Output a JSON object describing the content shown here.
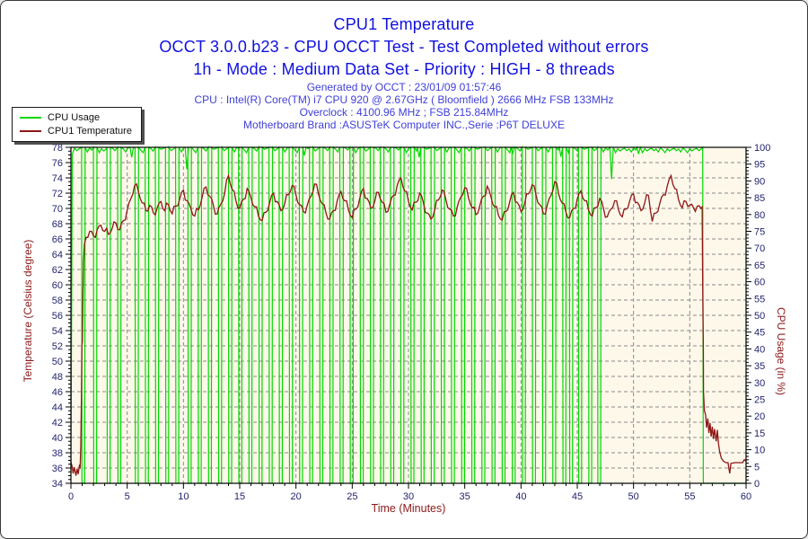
{
  "header": {
    "title": "CPU1 Temperature",
    "subtitle1": "OCCT 3.0.0.b23 - CPU OCCT Test - Test Completed without errors",
    "subtitle2": "1h - Mode : Medium Data Set - Priority : HIGH - 8 threads",
    "info_lines": [
      "Generated by OCCT : 23/01/09 01:57:46",
      "CPU : Intel(R) Core(TM) i7 CPU 920 @ 2.67GHz ( Bloomfield ) 2666 MHz FSB 133MHz",
      "Overclock : 4100.96 MHz ; FSB 215.84MHz",
      "Motherboard Brand :ASUSTeK Computer INC.,Serie :P6T DELUXE"
    ]
  },
  "legend": {
    "items": [
      {
        "label": "CPU Usage",
        "color": "#00d800"
      },
      {
        "label": "CPU1 Temperature",
        "color": "#8f1616"
      }
    ]
  },
  "colors": {
    "plot_background": "#fdf8ea",
    "grid": "#8a8a8a",
    "axis": "#000000",
    "tick_label": "#232370",
    "usage_green": "#00d800",
    "temperature_red": "#8f1616",
    "axis_title_maroon": "#8b1a1a"
  },
  "chart_data": {
    "type": "line",
    "title": "CPU1 Temperature",
    "x_axis": {
      "label": "Time (Minutes)",
      "min": 0,
      "max": 60,
      "major_step": 5,
      "minor_step": 1
    },
    "y_left": {
      "label": "Temperature (Celsius degree)",
      "min": 34,
      "max": 78,
      "major_step": 2,
      "minor_step": 0.5
    },
    "y_right": {
      "label": "CPU Usage (in %)",
      "min": 0,
      "max": 100,
      "major_step": 5,
      "minor_step": 1
    },
    "grid": {
      "horizontal_step_left_units": 2,
      "vertical_step_minutes": 5,
      "style": "dashed"
    },
    "series": [
      {
        "name": "CPU Usage",
        "axis": "right",
        "color": "#00d800",
        "start": [
          [
            0,
            3
          ],
          [
            0.12,
            98
          ]
        ],
        "dips_to_zero": {
          "duration": 0.28,
          "times": [
            0.95,
            2.0,
            3.2,
            4.15,
            5.7,
            6.6,
            7.5,
            8.4,
            9.3,
            10.4,
            11.3,
            12.2,
            13.1,
            14.0,
            14.9,
            15.8,
            16.7,
            17.6,
            18.5,
            19.4,
            20.3,
            21.2,
            22.1,
            23.0,
            23.9,
            24.8,
            25.7,
            26.6,
            27.5,
            28.4,
            29.3,
            30.2,
            31.1,
            32.0,
            32.9,
            33.8,
            34.7,
            35.6,
            36.5,
            37.4,
            38.3,
            39.2,
            40.1,
            41.0,
            41.9,
            42.8,
            43.7,
            44.3,
            45.1,
            46.0,
            46.8
          ]
        },
        "shallow_dips": [
          [
            5.25,
            97
          ],
          [
            10.15,
            93.5
          ],
          [
            20.6,
            97.5
          ],
          [
            30.8,
            97
          ],
          [
            39.1,
            98
          ],
          [
            43.4,
            97.2
          ],
          [
            47.9,
            90.5
          ],
          [
            50.3,
            98
          ]
        ],
        "drop_at": 56.15,
        "end_level": 0,
        "top_jitter": [
          0.3,
          1.0,
          0.5,
          1.4,
          0.2,
          0.8,
          1.6,
          0.4,
          1.1,
          0.6
        ]
      },
      {
        "name": "CPU1 Temperature",
        "axis": "left",
        "color": "#8f1616",
        "head": [
          [
            0,
            36.8
          ],
          [
            0.1,
            36.2
          ],
          [
            0.2,
            35.3
          ],
          [
            0.3,
            36.1
          ],
          [
            0.45,
            35.0
          ],
          [
            0.55,
            35.9
          ],
          [
            0.65,
            35.2
          ],
          [
            0.75,
            36.3
          ],
          [
            0.82,
            36.1
          ],
          [
            0.88,
            39.0
          ],
          [
            0.93,
            45.0
          ],
          [
            0.97,
            52.0
          ],
          [
            1.02,
            52.6
          ],
          [
            1.07,
            58.5
          ],
          [
            1.12,
            63.0
          ],
          [
            1.2,
            65.3
          ],
          [
            1.28,
            65.8
          ]
        ],
        "steady": {
          "t0": 1.3333,
          "dt": 0.3333,
          "values": [
            66.2,
            67.0,
            66.4,
            67.2,
            67.8,
            67.0,
            66.6,
            67.4,
            68.1,
            67.2,
            68.4,
            69.8,
            71.3,
            73.0,
            72.2,
            70.7,
            69.7,
            70.4,
            69.4,
            70.1,
            70.9,
            69.7,
            70.5,
            69.3,
            70.3,
            71.2,
            72.4,
            71.0,
            69.9,
            69.0,
            69.8,
            71.5,
            72.8,
            71.6,
            70.4,
            69.3,
            70.6,
            72.0,
            74.3,
            72.5,
            71.0,
            70.0,
            71.2,
            72.6,
            71.4,
            70.2,
            69.0,
            68.4,
            69.5,
            70.8,
            72.0,
            70.9,
            69.7,
            70.6,
            71.8,
            73.0,
            71.8,
            70.5,
            69.6,
            70.4,
            71.6,
            73.2,
            71.9,
            70.6,
            69.4,
            68.6,
            69.7,
            71.0,
            72.2,
            71.0,
            69.8,
            68.8,
            69.9,
            71.3,
            72.6,
            71.3,
            70.0,
            70.9,
            72.1,
            70.8,
            69.5,
            70.5,
            71.7,
            73.0,
            74.0,
            72.3,
            70.9,
            69.8,
            70.8,
            72.0,
            70.7,
            69.4,
            68.6,
            69.8,
            71.1,
            72.4,
            71.1,
            69.9,
            69.0,
            70.2,
            71.5,
            72.7,
            71.4,
            70.1,
            69.2,
            70.3,
            71.6,
            72.9,
            71.5,
            70.2,
            69.1,
            68.5,
            69.6,
            70.9,
            72.1,
            70.8,
            69.6,
            70.7,
            71.9,
            73.1,
            71.8,
            70.5,
            69.3,
            70.4,
            71.7,
            73.5,
            72.0,
            70.7,
            69.5,
            68.8,
            70.0,
            71.2,
            72.3,
            71.0,
            69.8,
            69.0,
            70.1,
            71.3,
            70.0,
            68.9,
            69.9,
            71.0,
            69.8,
            68.9,
            69.9,
            71.0,
            71.9,
            70.8,
            69.7,
            70.7,
            71.7,
            68.3,
            69.4,
            70.6,
            71.8,
            72.9,
            74.3,
            72.6,
            71.2,
            70.1,
            70.9,
            70.4,
            70.1,
            70.3,
            70.0
          ]
        },
        "tail": [
          [
            56.1,
            70.2
          ],
          [
            56.15,
            60.0
          ],
          [
            56.2,
            52.0
          ],
          [
            56.22,
            46.0
          ],
          [
            56.3,
            43.5
          ],
          [
            56.4,
            43.0
          ],
          [
            56.5,
            41.3
          ],
          [
            56.6,
            42.5
          ],
          [
            56.7,
            40.6
          ],
          [
            56.8,
            41.9
          ],
          [
            56.9,
            40.1
          ],
          [
            57.0,
            41.4
          ],
          [
            57.1,
            39.8
          ],
          [
            57.2,
            41.1
          ],
          [
            57.35,
            39.5
          ],
          [
            57.45,
            41.0
          ],
          [
            57.55,
            39.2
          ],
          [
            57.65,
            38.2
          ],
          [
            57.8,
            37.3
          ],
          [
            58.0,
            36.9
          ],
          [
            58.2,
            36.7
          ],
          [
            58.4,
            36.7
          ],
          [
            58.55,
            35.3
          ],
          [
            58.65,
            36.6
          ],
          [
            59.0,
            36.7
          ],
          [
            59.4,
            36.7
          ],
          [
            59.7,
            36.7
          ],
          [
            59.85,
            37.1
          ],
          [
            60,
            36.9
          ]
        ],
        "midpoint_jitter": [
          0.5,
          -0.4,
          0.3,
          -0.6,
          0.2,
          -0.3,
          0.6,
          -0.2
        ]
      }
    ]
  }
}
